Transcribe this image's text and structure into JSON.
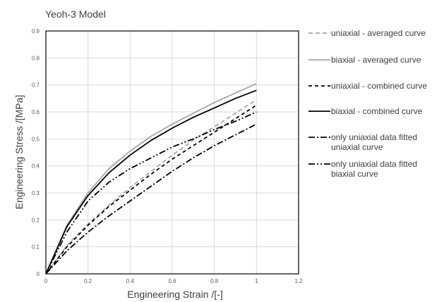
{
  "chart_data": {
    "type": "line",
    "title": "Yeoh-3 Model",
    "xlabel": "Engineering Strain /[-]",
    "ylabel": "Engineering Stress /[MPa]",
    "xlim": [
      0,
      1.2
    ],
    "ylim": [
      0,
      0.9
    ],
    "xticks": [
      0,
      0.2,
      0.4,
      0.6,
      0.8,
      1,
      1.2
    ],
    "yticks": [
      0,
      0.1,
      0.2,
      0.3,
      0.4,
      0.5,
      0.6,
      0.7,
      0.8,
      0.9
    ],
    "xtick_labels": [
      "0",
      "0.2",
      "0.4",
      "0.6",
      "0.8",
      "1",
      "1.2"
    ],
    "ytick_labels": [
      "0",
      "0.1",
      "0.2",
      "0.3",
      "0.4",
      "0.5",
      "0.6",
      "0.7",
      "0.8",
      "0.9"
    ],
    "grid": true,
    "legend_position": "right",
    "series": [
      {
        "name": "uniaxial - averaged curve",
        "color": "#a6a6a6",
        "dash": "6,4",
        "width": 1.8,
        "x": [
          0,
          0.1,
          0.2,
          0.3,
          0.4,
          0.5,
          0.6,
          0.7,
          0.8,
          0.9,
          1.0
        ],
        "y": [
          0,
          0.105,
          0.185,
          0.255,
          0.32,
          0.38,
          0.44,
          0.495,
          0.545,
          0.595,
          0.645
        ]
      },
      {
        "name": "biaxial - averaged curve",
        "color": "#a6a6a6",
        "dash": "",
        "width": 1.8,
        "x": [
          0,
          0.1,
          0.2,
          0.3,
          0.4,
          0.5,
          0.6,
          0.7,
          0.8,
          0.9,
          1.0
        ],
        "y": [
          0,
          0.18,
          0.3,
          0.39,
          0.455,
          0.51,
          0.555,
          0.595,
          0.635,
          0.67,
          0.705
        ]
      },
      {
        "name": "uniaxial - combined curve",
        "color": "#000000",
        "dash": "5,4",
        "width": 1.8,
        "x": [
          0,
          0.1,
          0.2,
          0.3,
          0.4,
          0.5,
          0.6,
          0.7,
          0.8,
          0.9,
          1.0
        ],
        "y": [
          0,
          0.1,
          0.18,
          0.25,
          0.31,
          0.37,
          0.425,
          0.475,
          0.525,
          0.575,
          0.625
        ]
      },
      {
        "name": "biaxial - combined curve",
        "color": "#000000",
        "dash": "",
        "width": 1.8,
        "x": [
          0,
          0.1,
          0.2,
          0.3,
          0.4,
          0.5,
          0.6,
          0.7,
          0.8,
          0.9,
          1.0
        ],
        "y": [
          0,
          0.175,
          0.29,
          0.375,
          0.44,
          0.495,
          0.54,
          0.58,
          0.615,
          0.65,
          0.68
        ]
      },
      {
        "name": "only uniaxial data fitted uniaxial curve",
        "color": "#000000",
        "dash": "9,3,2,3",
        "width": 1.8,
        "x": [
          0,
          0.1,
          0.2,
          0.3,
          0.4,
          0.5,
          0.6,
          0.7,
          0.8,
          0.9,
          1.0
        ],
        "y": [
          0,
          0.085,
          0.155,
          0.215,
          0.27,
          0.325,
          0.38,
          0.43,
          0.475,
          0.515,
          0.555
        ]
      },
      {
        "name": "only uniaxial data fitted biaxial curve",
        "color": "#000000",
        "dash": "9,3,2,3,2,3",
        "width": 1.8,
        "x": [
          0,
          0.1,
          0.2,
          0.3,
          0.4,
          0.5,
          0.6,
          0.7,
          0.8,
          0.9,
          1.0
        ],
        "y": [
          0,
          0.155,
          0.27,
          0.34,
          0.39,
          0.43,
          0.47,
          0.5,
          0.535,
          0.565,
          0.6
        ]
      }
    ]
  },
  "legend": {
    "items": [
      {
        "lines": [
          "uniaxial - averaged curve"
        ]
      },
      {
        "lines": [
          "biaxial - averaged curve"
        ]
      },
      {
        "lines": [
          "uniaxial - combined curve"
        ]
      },
      {
        "lines": [
          "biaxial - combined curve"
        ]
      },
      {
        "lines": [
          "only uniaxial data fitted",
          "uniaxial curve"
        ]
      },
      {
        "lines": [
          "only uniaxial data fitted",
          "biaxial curve"
        ]
      }
    ]
  }
}
